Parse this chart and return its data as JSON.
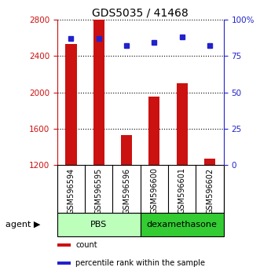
{
  "title": "GDS5035 / 41468",
  "samples": [
    "GSM596594",
    "GSM596595",
    "GSM596596",
    "GSM596600",
    "GSM596601",
    "GSM596602"
  ],
  "counts": [
    2530,
    2800,
    1530,
    1950,
    2100,
    1270
  ],
  "percentiles": [
    87,
    87,
    82,
    84,
    88,
    82
  ],
  "ylim_left": [
    1200,
    2800
  ],
  "ylim_right": [
    0,
    100
  ],
  "yticks_left": [
    1200,
    1600,
    2000,
    2400,
    2800
  ],
  "yticks_right": [
    0,
    25,
    50,
    75,
    100
  ],
  "bar_color": "#cc1111",
  "dot_color": "#2222cc",
  "pbs_color": "#bbffbb",
  "dex_color": "#33cc33",
  "sample_box_color": "#cccccc",
  "groups": [
    "PBS",
    "dexamethasone"
  ],
  "group_colors": [
    "#bbffbb",
    "#33cc33"
  ],
  "agent_label": "agent",
  "legend_count_label": "count",
  "legend_percentile_label": "percentile rank within the sample",
  "title_fontsize": 10,
  "tick_fontsize": 7.5,
  "label_fontsize": 7,
  "bar_width": 0.4
}
